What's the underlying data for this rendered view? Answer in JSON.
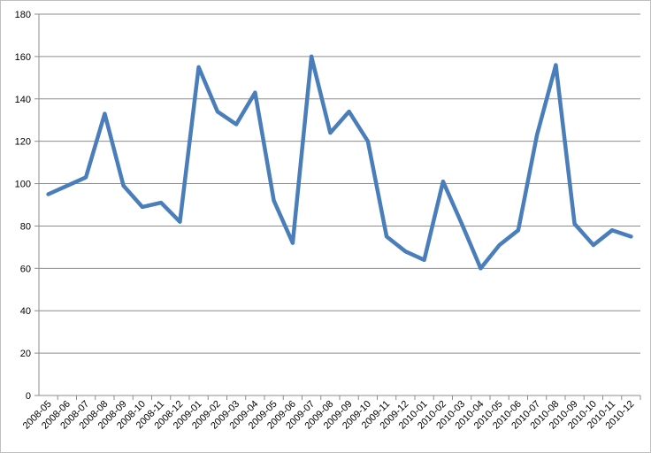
{
  "chart_data": {
    "type": "line",
    "title": "",
    "xlabel": "",
    "ylabel": "",
    "ylim": [
      0,
      180
    ],
    "yticks": [
      0,
      20,
      40,
      60,
      80,
      100,
      120,
      140,
      160,
      180
    ],
    "grid": "horizontal",
    "legend": "none",
    "line_color": "#4a7ebb",
    "categories": [
      "2008-05",
      "2008-06",
      "2008-07",
      "2008-08",
      "2008-09",
      "2008-10",
      "2008-11",
      "2008-12",
      "2009-01",
      "2009-02",
      "2009-03",
      "2009-04",
      "2009-05",
      "2009-06",
      "2009-07",
      "2009-08",
      "2009-09",
      "2009-10",
      "2009-11",
      "2009-12",
      "2010-01",
      "2010-02",
      "2010-03",
      "2010-04",
      "2010-05",
      "2010-06",
      "2010-07",
      "2010-08",
      "2010-09",
      "2010-10",
      "2010-11",
      "2010-12"
    ],
    "values": [
      95,
      99,
      103,
      133,
      99,
      89,
      91,
      82,
      155,
      134,
      128,
      143,
      92,
      72,
      160,
      124,
      134,
      120,
      75,
      68,
      64,
      101,
      81,
      60,
      71,
      78,
      123,
      156,
      81,
      71,
      78,
      75
    ]
  }
}
